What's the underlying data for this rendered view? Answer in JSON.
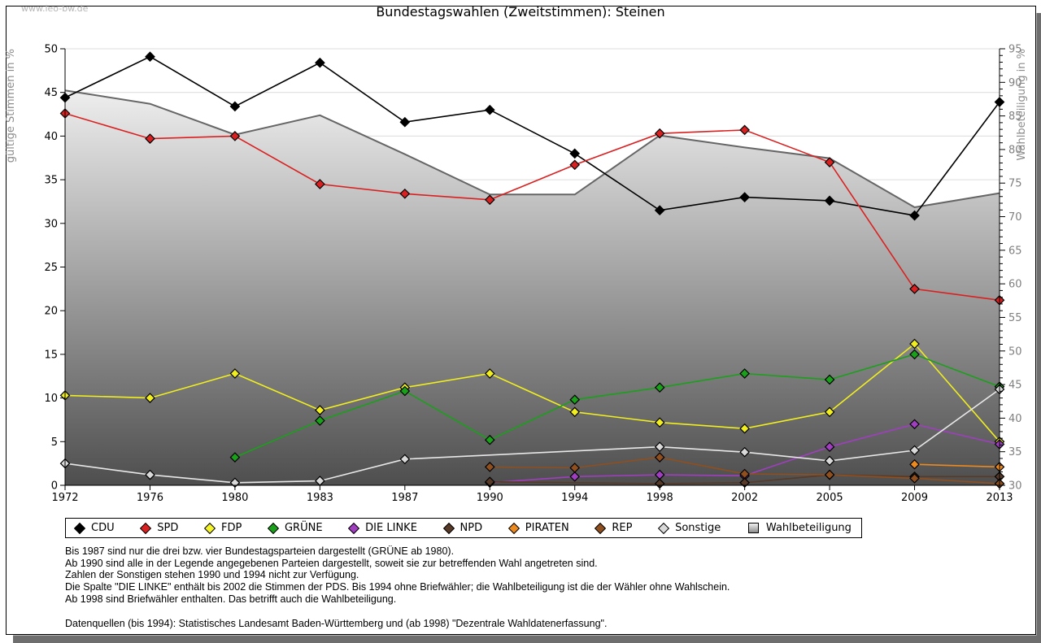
{
  "watermark": "www.leo-bw.de",
  "title": "Bundestagswahlen (Zweitstimmen): Steinen",
  "axes": {
    "left_label": "gültige Stimmen in %",
    "right_label": "Wahlbeteiligung in %",
    "left_min": 0,
    "left_max": 50,
    "left_step": 5,
    "right_min": 30,
    "right_max": 95,
    "right_step": 5,
    "grid_color": "#dcdcdc",
    "left_tick_color": "#000000",
    "right_tick_color": "#7f7f7f",
    "axis_title_color": "#8c8c8c"
  },
  "chart_data": {
    "type": "line",
    "title": "Bundestagswahlen (Zweitstimmen): Steinen",
    "xlabel": "",
    "ylabel_left": "gültige Stimmen in %",
    "ylabel_right": "Wahlbeteiligung in %",
    "ylim_left": [
      0,
      50
    ],
    "ylim_right": [
      30,
      95
    ],
    "grid": true,
    "legend_position": "bottom",
    "categories": [
      1972,
      1976,
      1980,
      1983,
      1987,
      1990,
      1994,
      1998,
      2002,
      2005,
      2009,
      2013
    ],
    "series": [
      {
        "name": "Wahlbeteiligung",
        "type": "area",
        "axis": "right",
        "marker": "none",
        "color": "#666666",
        "fill_top": "#ffffff",
        "fill_bottom": "#4e4e4e",
        "values": [
          88.8,
          86.8,
          82.2,
          85.1,
          79.3,
          73.3,
          73.3,
          82.1,
          80.3,
          78.7,
          71.4,
          73.5
        ]
      },
      {
        "name": "CDU",
        "type": "line",
        "axis": "left",
        "marker": "diamond",
        "color": "#000000",
        "values": [
          44.4,
          49.1,
          43.4,
          48.4,
          41.6,
          43.0,
          38.0,
          31.5,
          33.0,
          32.6,
          30.9,
          43.9
        ]
      },
      {
        "name": "SPD",
        "type": "line",
        "axis": "left",
        "marker": "diamond",
        "color": "#d92121",
        "values": [
          42.6,
          39.7,
          40.0,
          34.5,
          33.4,
          32.7,
          36.7,
          40.3,
          40.7,
          37.0,
          22.5,
          21.2
        ]
      },
      {
        "name": "FDP",
        "type": "line",
        "axis": "left",
        "marker": "diamond",
        "color": "#f0ee20",
        "values": [
          10.3,
          10.0,
          12.8,
          8.6,
          11.2,
          12.8,
          8.4,
          7.2,
          6.5,
          8.4,
          16.2,
          5.0
        ]
      },
      {
        "name": "GRÜNE",
        "type": "line",
        "axis": "left",
        "marker": "diamond",
        "color": "#1aa01a",
        "values": [
          null,
          null,
          3.2,
          7.4,
          10.8,
          5.2,
          9.8,
          11.2,
          12.8,
          12.1,
          15.0,
          11.3
        ]
      },
      {
        "name": "DIE LINKE",
        "type": "line",
        "axis": "left",
        "marker": "diamond",
        "color": "#9f3fbf",
        "values": [
          null,
          null,
          null,
          null,
          null,
          0.3,
          1.0,
          1.2,
          1.1,
          4.4,
          7.0,
          4.7
        ]
      },
      {
        "name": "NPD",
        "type": "line",
        "axis": "left",
        "marker": "diamond",
        "color": "#583a28",
        "values": [
          null,
          null,
          null,
          null,
          null,
          0.4,
          null,
          0.2,
          0.3,
          1.2,
          1.0,
          1.0
        ]
      },
      {
        "name": "PIRATEN",
        "type": "line",
        "axis": "left",
        "marker": "diamond",
        "color": "#ec8a20",
        "values": [
          null,
          null,
          null,
          null,
          null,
          null,
          null,
          null,
          null,
          null,
          2.4,
          2.1
        ]
      },
      {
        "name": "REP",
        "type": "line",
        "axis": "left",
        "marker": "diamond",
        "color": "#8f4f1f",
        "values": [
          null,
          null,
          null,
          null,
          null,
          2.1,
          2.0,
          3.2,
          1.3,
          1.2,
          0.8,
          0.2
        ]
      },
      {
        "name": "Sonstige",
        "type": "line",
        "axis": "left",
        "marker": "diamond",
        "color": "#e8e8e8",
        "marker_fill": "#d9d9d9",
        "values": [
          2.5,
          1.2,
          0.3,
          0.5,
          3.0,
          null,
          null,
          4.4,
          3.8,
          2.8,
          4.0,
          11.0
        ]
      }
    ]
  },
  "legend": {
    "items": [
      {
        "label": "CDU",
        "shape": "diamond",
        "color": "#000000"
      },
      {
        "label": "SPD",
        "shape": "diamond",
        "color": "#d92121"
      },
      {
        "label": "FDP",
        "shape": "diamond",
        "color": "#f4f42a"
      },
      {
        "label": "GRÜNE",
        "shape": "diamond",
        "color": "#1aa01a"
      },
      {
        "label": "DIE LINKE",
        "shape": "diamond",
        "color": "#9f3fbf"
      },
      {
        "label": "NPD",
        "shape": "diamond",
        "color": "#583a28"
      },
      {
        "label": "PIRATEN",
        "shape": "diamond",
        "color": "#ec8a20"
      },
      {
        "label": "REP",
        "shape": "diamond",
        "color": "#8f4f1f"
      },
      {
        "label": "Sonstige",
        "shape": "diamond",
        "color": "#d9d9d9"
      },
      {
        "label": "Wahlbeteiligung",
        "shape": "square",
        "color": "#c0c0c0"
      }
    ]
  },
  "footnotes": {
    "lines": [
      "Bis 1987 sind nur die drei bzw. vier Bundestagsparteien dargestellt (GRÜNE ab 1980).",
      "Ab 1990 sind alle in der Legende angegebenen Parteien dargestellt, soweit sie zur betreffenden Wahl angetreten sind.",
      "Zahlen der Sonstigen stehen 1990 und 1994 nicht zur Verfügung.",
      "Die Spalte \"DIE LINKE\" enthält bis 2002 die Stimmen der PDS. Bis 1994 ohne Briefwähler; die Wahlbeteiligung ist die der Wähler ohne Wahlschein.",
      "Ab 1998 sind Briefwähler enthalten. Das betrifft auch die Wahlbeteiligung."
    ],
    "source": "Datenquellen (bis 1994): Statistisches Landesamt Baden-Württemberg und (ab 1998) \"Dezentrale Wahldatenerfassung\"."
  },
  "frame": {
    "border_color": "#000000",
    "shadow_color": "#6e6e6e"
  }
}
